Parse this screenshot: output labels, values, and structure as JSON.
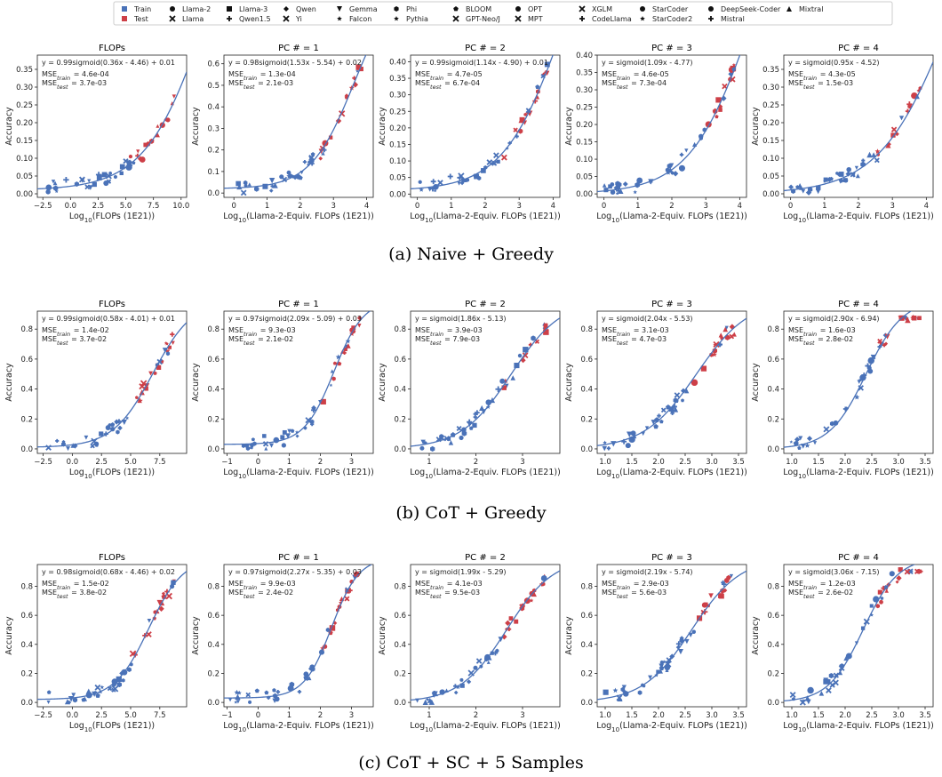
{
  "legend": {
    "items": [
      {
        "label": "Train",
        "marker": "square",
        "color": "#4a72b8"
      },
      {
        "label": "Test",
        "marker": "square",
        "color": "#cd3f47"
      },
      {
        "label": "Llama-2",
        "marker": "circle"
      },
      {
        "label": "Llama",
        "marker": "x"
      },
      {
        "label": "Llama-3",
        "marker": "square"
      },
      {
        "label": "Qwen1.5",
        "marker": "plus"
      },
      {
        "label": "Qwen",
        "marker": "diamond"
      },
      {
        "label": "Yi",
        "marker": "x"
      },
      {
        "label": "Gemma",
        "marker": "triangle-down"
      },
      {
        "label": "Falcon",
        "marker": "star"
      },
      {
        "label": "Phi",
        "marker": "hexagon"
      },
      {
        "label": "Pythia",
        "marker": "star"
      },
      {
        "label": "BLOOM",
        "marker": "pentagon"
      },
      {
        "label": "GPT-Neo/J",
        "marker": "x"
      },
      {
        "label": "OPT",
        "marker": "circle"
      },
      {
        "label": "MPT",
        "marker": "x"
      },
      {
        "label": "XGLM",
        "marker": "x"
      },
      {
        "label": "CodeLlama",
        "marker": "plus"
      },
      {
        "label": "StarCoder",
        "marker": "circle"
      },
      {
        "label": "StarCoder2",
        "marker": "star"
      },
      {
        "label": "DeepSeek-Coder",
        "marker": "circle"
      },
      {
        "label": "Mistral",
        "marker": "plus"
      },
      {
        "label": "Mixtral",
        "marker": "triangle-up"
      }
    ]
  },
  "colors": {
    "train": "#4a72b8",
    "test": "#cd3f47",
    "fit": "#4a72b8"
  },
  "captions": [
    "(a) Naive + Greedy",
    "(b) CoT + Greedy",
    "(c) CoT + SC + 5 Samples"
  ],
  "axes_labels": {
    "ylabel": "Accuracy",
    "xlabel_flops": "Log10(FLOPs (1E21))",
    "xlabel_pc": "Log10(Llama-2-Equiv. FLOPs (1E21))"
  },
  "chart_data": [
    {
      "type": "scatter",
      "row": 0,
      "col": 0,
      "title": "FLOPs",
      "xkind": "flops",
      "equation": "y = 0.99sigmoid(0.36x - 4.46) + 0.01",
      "mse_train": "4.6e-04",
      "mse_test": "3.7e-03",
      "fit": {
        "a": 0.99,
        "b": 0.36,
        "c": -4.46,
        "d": 0.01
      },
      "xlim": [
        -3,
        10.5
      ],
      "ylim": [
        -0.01,
        0.39
      ],
      "xticks": [
        -2.5,
        0,
        2.5,
        5,
        7.5,
        10
      ],
      "xtick_labels": [
        "−2.5",
        "0.0",
        "2.5",
        "5.0",
        "7.5",
        "10.0"
      ],
      "yticks": [
        0,
        0.05,
        0.1,
        0.15,
        0.2,
        0.25,
        0.3,
        0.35
      ],
      "ytick_labels": [
        "0.00",
        "0.05",
        "0.10",
        "0.15",
        "0.20",
        "0.25",
        "0.30",
        "0.35"
      ]
    },
    {
      "type": "scatter",
      "row": 0,
      "col": 1,
      "title": "PC # = 1",
      "xkind": "pc",
      "equation": "y = 0.98sigmoid(1.53x - 5.54) + 0.02",
      "mse_train": "1.3e-04",
      "mse_test": "2.1e-03",
      "fit": {
        "a": 0.98,
        "b": 1.53,
        "c": -5.54,
        "d": 0.02
      },
      "xlim": [
        -0.3,
        4.2
      ],
      "ylim": [
        -0.02,
        0.64
      ],
      "xticks": [
        0,
        1,
        2,
        3,
        4
      ],
      "xtick_labels": [
        "0",
        "1",
        "2",
        "3",
        "4"
      ],
      "yticks": [
        0,
        0.1,
        0.2,
        0.3,
        0.4,
        0.5,
        0.6
      ],
      "ytick_labels": [
        "0.0",
        "0.1",
        "0.2",
        "0.3",
        "0.4",
        "0.5",
        "0.6"
      ]
    },
    {
      "type": "scatter",
      "row": 0,
      "col": 2,
      "title": "PC # = 2",
      "xkind": "pc",
      "equation": "y = 0.99sigmoid(1.14x - 4.90) + 0.01",
      "mse_train": "4.7e-05",
      "mse_test": "6.7e-04",
      "fit": {
        "a": 0.99,
        "b": 1.14,
        "c": -4.9,
        "d": 0.01
      },
      "xlim": [
        -0.2,
        4.2
      ],
      "ylim": [
        -0.01,
        0.42
      ],
      "xticks": [
        0,
        1,
        2,
        3,
        4
      ],
      "xtick_labels": [
        "0",
        "1",
        "2",
        "3",
        "4"
      ],
      "yticks": [
        0,
        0.05,
        0.1,
        0.15,
        0.2,
        0.25,
        0.3,
        0.35,
        0.4
      ],
      "ytick_labels": [
        "0.00",
        "0.05",
        "0.10",
        "0.15",
        "0.20",
        "0.25",
        "0.30",
        "0.35",
        "0.40"
      ]
    },
    {
      "type": "scatter",
      "row": 0,
      "col": 3,
      "title": "PC # = 3",
      "xkind": "pc",
      "equation": "y = sigmoid(1.09x - 4.77)",
      "mse_train": "4.6e-05",
      "mse_test": "7.3e-04",
      "fit": {
        "a": 1,
        "b": 1.09,
        "c": -4.77,
        "d": 0
      },
      "xlim": [
        -0.2,
        4.2
      ],
      "ylim": [
        -0.01,
        0.4
      ],
      "xticks": [
        0,
        1,
        2,
        3,
        4
      ],
      "xtick_labels": [
        "0",
        "1",
        "2",
        "3",
        "4"
      ],
      "yticks": [
        0,
        0.05,
        0.1,
        0.15,
        0.2,
        0.25,
        0.3,
        0.35,
        0.4
      ],
      "ytick_labels": [
        "0.00",
        "0.05",
        "0.10",
        "0.15",
        "0.20",
        "0.25",
        "0.30",
        "0.35",
        "0.40"
      ]
    },
    {
      "type": "scatter",
      "row": 0,
      "col": 4,
      "title": "PC # = 4",
      "xkind": "pc",
      "equation": "y = sigmoid(0.95x - 4.52)",
      "mse_train": "4.3e-05",
      "mse_test": "1.5e-03",
      "fit": {
        "a": 1,
        "b": 0.95,
        "c": -4.52,
        "d": 0
      },
      "xlim": [
        -0.2,
        4.2
      ],
      "ylim": [
        -0.01,
        0.39
      ],
      "xticks": [
        0,
        1,
        2,
        3,
        4
      ],
      "xtick_labels": [
        "0",
        "1",
        "2",
        "3",
        "4"
      ],
      "yticks": [
        0,
        0.05,
        0.1,
        0.15,
        0.2,
        0.25,
        0.3,
        0.35
      ],
      "ytick_labels": [
        "0.00",
        "0.05",
        "0.10",
        "0.15",
        "0.20",
        "0.25",
        "0.30",
        "0.35"
      ]
    },
    {
      "type": "scatter",
      "row": 1,
      "col": 0,
      "title": "FLOPs",
      "xkind": "flops",
      "equation": "y = 0.99sigmoid(0.58x - 4.01) + 0.01",
      "mse_train": "1.4e-02",
      "mse_test": "3.7e-02",
      "fit": {
        "a": 0.99,
        "b": 0.58,
        "c": -4.01,
        "d": 0.01
      },
      "xlim": [
        -3,
        9.8
      ],
      "ylim": [
        -0.03,
        0.92
      ],
      "xticks": [
        -2.5,
        0,
        2.5,
        5,
        7.5
      ],
      "xtick_labels": [
        "−2.5",
        "0.0",
        "2.5",
        "5.0",
        "7.5"
      ],
      "yticks": [
        0,
        0.2,
        0.4,
        0.6,
        0.8
      ],
      "ytick_labels": [
        "0.0",
        "0.2",
        "0.4",
        "0.6",
        "0.8"
      ]
    },
    {
      "type": "scatter",
      "row": 1,
      "col": 1,
      "title": "PC # = 1",
      "xkind": "pc",
      "equation": "y = 0.97sigmoid(2.09x - 5.09) + 0.03",
      "mse_train": "9.3e-03",
      "mse_test": "2.1e-02",
      "fit": {
        "a": 0.97,
        "b": 2.09,
        "c": -5.09,
        "d": 0.03
      },
      "xlim": [
        -1.1,
        3.7
      ],
      "ylim": [
        -0.03,
        0.92
      ],
      "xticks": [
        -1,
        0,
        1,
        2,
        3
      ],
      "xtick_labels": [
        "−1",
        "0",
        "1",
        "2",
        "3"
      ],
      "yticks": [
        0,
        0.2,
        0.4,
        0.6,
        0.8
      ],
      "ytick_labels": [
        "0.0",
        "0.2",
        "0.4",
        "0.6",
        "0.8"
      ]
    },
    {
      "type": "scatter",
      "row": 1,
      "col": 2,
      "title": "PC # = 2",
      "xkind": "pc",
      "equation": "y = sigmoid(1.86x - 5.13)",
      "mse_train": "3.9e-03",
      "mse_test": "7.9e-03",
      "fit": {
        "a": 1,
        "b": 1.86,
        "c": -5.13,
        "d": 0
      },
      "xlim": [
        0.6,
        3.8
      ],
      "ylim": [
        -0.03,
        0.92
      ],
      "xticks": [
        1,
        2,
        3
      ],
      "xtick_labels": [
        "1",
        "2",
        "3"
      ],
      "yticks": [
        0,
        0.2,
        0.4,
        0.6,
        0.8
      ],
      "ytick_labels": [
        "0.0",
        "0.2",
        "0.4",
        "0.6",
        "0.8"
      ]
    },
    {
      "type": "scatter",
      "row": 1,
      "col": 3,
      "title": "PC # = 3",
      "xkind": "pc",
      "equation": "y = sigmoid(2.04x - 5.53)",
      "mse_train": "3.1e-03",
      "mse_test": "4.7e-03",
      "fit": {
        "a": 1,
        "b": 2.04,
        "c": -5.53,
        "d": 0
      },
      "xlim": [
        0.85,
        3.65
      ],
      "ylim": [
        -0.03,
        0.92
      ],
      "xticks": [
        1,
        1.5,
        2,
        2.5,
        3,
        3.5
      ],
      "xtick_labels": [
        "1.0",
        "1.5",
        "2.0",
        "2.5",
        "3.0",
        "3.5"
      ],
      "yticks": [
        0,
        0.2,
        0.4,
        0.6,
        0.8
      ],
      "ytick_labels": [
        "0.0",
        "0.2",
        "0.4",
        "0.6",
        "0.8"
      ]
    },
    {
      "type": "scatter",
      "row": 1,
      "col": 4,
      "title": "PC # = 4",
      "xkind": "pc",
      "equation": "y = sigmoid(2.90x - 6.94)",
      "mse_train": "1.6e-03",
      "mse_test": "2.8e-02",
      "fit": {
        "a": 1,
        "b": 2.9,
        "c": -6.94,
        "d": 0
      },
      "xlim": [
        0.85,
        3.65
      ],
      "ylim": [
        -0.03,
        0.92
      ],
      "xticks": [
        1,
        1.5,
        2,
        2.5,
        3,
        3.5
      ],
      "xtick_labels": [
        "1.0",
        "1.5",
        "2.0",
        "2.5",
        "3.0",
        "3.5"
      ],
      "yticks": [
        0,
        0.2,
        0.4,
        0.6,
        0.8
      ],
      "ytick_labels": [
        "0.0",
        "0.2",
        "0.4",
        "0.6",
        "0.8"
      ]
    },
    {
      "type": "scatter",
      "row": 2,
      "col": 0,
      "title": "FLOPs",
      "xkind": "flops",
      "equation": "y = 0.98sigmoid(0.68x - 4.46) + 0.02",
      "mse_train": "1.5e-02",
      "mse_test": "3.8e-02",
      "fit": {
        "a": 0.98,
        "b": 0.68,
        "c": -4.46,
        "d": 0.02
      },
      "xlim": [
        -3,
        9.8
      ],
      "ylim": [
        -0.03,
        0.95
      ],
      "xticks": [
        -2.5,
        0,
        2.5,
        5,
        7.5
      ],
      "xtick_labels": [
        "−2.5",
        "0.0",
        "2.5",
        "5.0",
        "7.5"
      ],
      "yticks": [
        0,
        0.2,
        0.4,
        0.6,
        0.8
      ],
      "ytick_labels": [
        "0.0",
        "0.2",
        "0.4",
        "0.6",
        "0.8"
      ]
    },
    {
      "type": "scatter",
      "row": 2,
      "col": 1,
      "title": "PC # = 1",
      "xkind": "pc",
      "equation": "y = 0.97sigmoid(2.27x - 5.35) + 0.03",
      "mse_train": "9.9e-03",
      "mse_test": "2.4e-02",
      "fit": {
        "a": 0.97,
        "b": 2.27,
        "c": -5.35,
        "d": 0.03
      },
      "xlim": [
        -1.1,
        3.7
      ],
      "ylim": [
        -0.03,
        0.95
      ],
      "xticks": [
        -1,
        0,
        1,
        2,
        3
      ],
      "xtick_labels": [
        "−1",
        "0",
        "1",
        "2",
        "3"
      ],
      "yticks": [
        0,
        0.2,
        0.4,
        0.6,
        0.8
      ],
      "ytick_labels": [
        "0.0",
        "0.2",
        "0.4",
        "0.6",
        "0.8"
      ]
    },
    {
      "type": "scatter",
      "row": 2,
      "col": 2,
      "title": "PC # = 2",
      "xkind": "pc",
      "equation": "y = sigmoid(1.99x - 5.29)",
      "mse_train": "4.1e-03",
      "mse_test": "9.5e-03",
      "fit": {
        "a": 1,
        "b": 1.99,
        "c": -5.29,
        "d": 0
      },
      "xlim": [
        0.6,
        3.8
      ],
      "ylim": [
        -0.03,
        0.95
      ],
      "xticks": [
        1,
        2,
        3
      ],
      "xtick_labels": [
        "1",
        "2",
        "3"
      ],
      "yticks": [
        0,
        0.2,
        0.4,
        0.6,
        0.8
      ],
      "ytick_labels": [
        "0.0",
        "0.2",
        "0.4",
        "0.6",
        "0.8"
      ]
    },
    {
      "type": "scatter",
      "row": 2,
      "col": 3,
      "title": "PC # = 3",
      "xkind": "pc",
      "equation": "y = sigmoid(2.19x - 5.74)",
      "mse_train": "2.9e-03",
      "mse_test": "5.6e-03",
      "fit": {
        "a": 1,
        "b": 2.19,
        "c": -5.74,
        "d": 0
      },
      "xlim": [
        0.85,
        3.65
      ],
      "ylim": [
        -0.03,
        0.95
      ],
      "xticks": [
        1,
        1.5,
        2,
        2.5,
        3,
        3.5
      ],
      "xtick_labels": [
        "1.0",
        "1.5",
        "2.0",
        "2.5",
        "3.0",
        "3.5"
      ],
      "yticks": [
        0,
        0.2,
        0.4,
        0.6,
        0.8
      ],
      "ytick_labels": [
        "0.0",
        "0.2",
        "0.4",
        "0.6",
        "0.8"
      ]
    },
    {
      "type": "scatter",
      "row": 2,
      "col": 4,
      "title": "PC # = 4",
      "xkind": "pc",
      "equation": "y = sigmoid(3.06x - 7.15)",
      "mse_train": "1.2e-03",
      "mse_test": "2.6e-02",
      "fit": {
        "a": 1,
        "b": 3.06,
        "c": -7.15,
        "d": 0
      },
      "xlim": [
        0.85,
        3.65
      ],
      "ylim": [
        -0.03,
        0.95
      ],
      "xticks": [
        1,
        1.5,
        2,
        2.5,
        3,
        3.5
      ],
      "xtick_labels": [
        "1.0",
        "1.5",
        "2.0",
        "2.5",
        "3.0",
        "3.5"
      ],
      "yticks": [
        0,
        0.2,
        0.4,
        0.6,
        0.8
      ],
      "ytick_labels": [
        "0.0",
        "0.2",
        "0.4",
        "0.6",
        "0.8"
      ]
    }
  ]
}
